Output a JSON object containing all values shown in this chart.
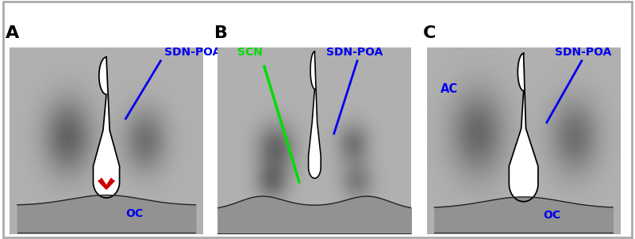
{
  "fig_bg": "#ffffff",
  "panel_bg": "#b0b0b0",
  "white_fill": "#ffffff",
  "red_fill": "#cc0000",
  "outline_color": "#111111",
  "oc_fill": "#888888",
  "blue_label": "#0000ee",
  "green_label": "#00dd00",
  "blob_color_dark": "#555555",
  "panel_labels": [
    "A",
    "B",
    "C"
  ],
  "label_fontsize": 16,
  "annot_fontsize": 10
}
